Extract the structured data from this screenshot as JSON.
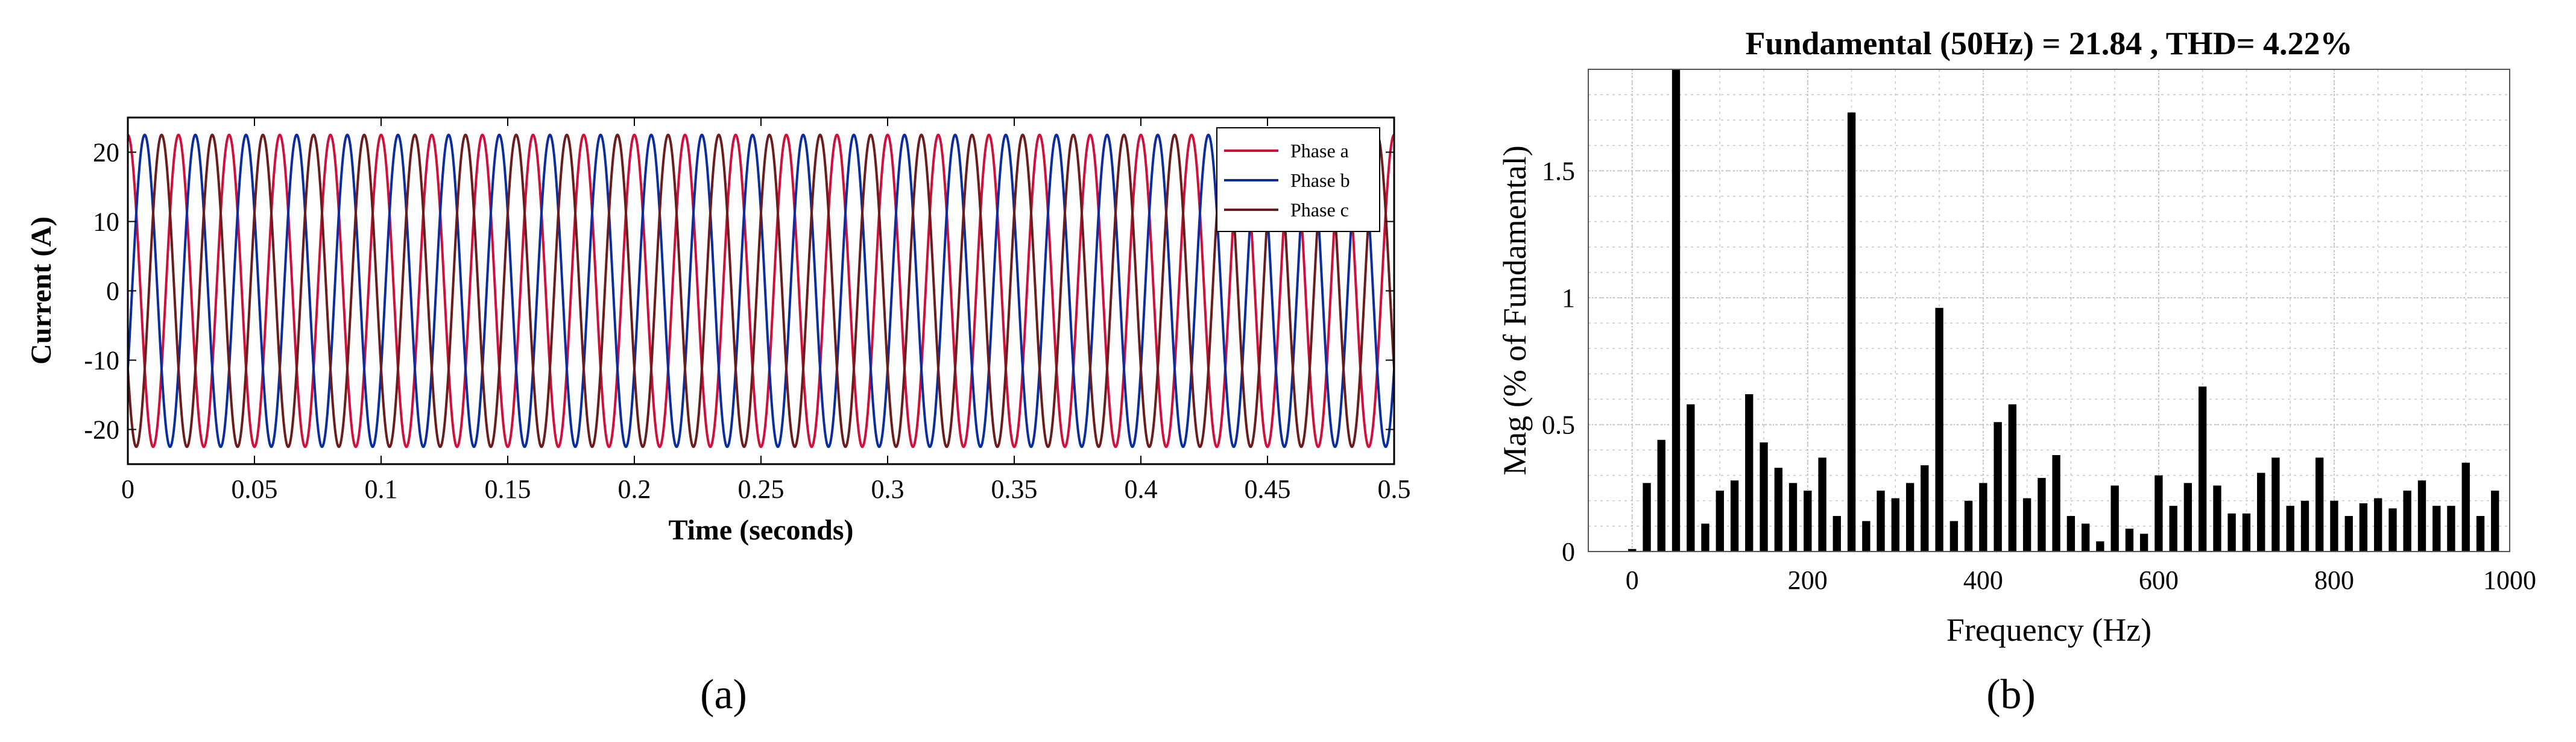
{
  "chart_data": [
    {
      "type": "line",
      "caption": "(a)",
      "xlabel": "Time (seconds)",
      "ylabel": "Current (A)",
      "xlim": [
        0,
        0.5
      ],
      "ylim": [
        -25,
        25
      ],
      "xticks": [
        0,
        0.05,
        0.1,
        0.15,
        0.2,
        0.25,
        0.3,
        0.35,
        0.4,
        0.45,
        0.5
      ],
      "xtick_labels": [
        "0",
        "0.05",
        "0.1",
        "0.15",
        "0.2",
        "0.25",
        "0.3",
        "0.35",
        "0.4",
        "0.45",
        "0.5"
      ],
      "yticks": [
        -20,
        -10,
        0,
        10,
        20
      ],
      "ytick_labels": [
        "-20",
        "-10",
        "0",
        "10",
        "20"
      ],
      "legend_position": "top-right",
      "series": [
        {
          "name": "Phase a",
          "color": "#d0103a",
          "amplitude": 22.5,
          "frequency_hz": 50,
          "phase_deg": 90
        },
        {
          "name": "Phase b",
          "color": "#0a2ea0",
          "amplitude": 22.5,
          "frequency_hz": 50,
          "phase_deg": -30
        },
        {
          "name": "Phase c",
          "color": "#6b1c1c",
          "amplitude": 22.5,
          "frequency_hz": 50,
          "phase_deg": 210
        }
      ]
    },
    {
      "type": "bar",
      "caption": "(b)",
      "title": "Fundamental (50Hz) = 21.84 , THD= 4.22%",
      "xlabel": "Frequency (Hz)",
      "ylabel": "Mag (% of Fundamental)",
      "xlim": [
        -50,
        1000
      ],
      "ylim": [
        0,
        1.9
      ],
      "xticks": [
        0,
        200,
        400,
        600,
        800,
        1000
      ],
      "xtick_labels": [
        "0",
        "200",
        "400",
        "600",
        "800",
        "1000"
      ],
      "yticks": [
        0,
        0.5,
        1,
        1.5
      ],
      "ytick_labels": [
        "0",
        "0.5",
        "1",
        "1.5"
      ],
      "grid": true,
      "frequencies": [
        0,
        16.7,
        33.3,
        50,
        66.7,
        83.3,
        100,
        116.7,
        133.3,
        150,
        166.7,
        183.3,
        200,
        216.7,
        233.3,
        250,
        266.7,
        283.3,
        300,
        316.7,
        333.3,
        350,
        366.7,
        383.3,
        400,
        416.7,
        433.3,
        450,
        466.7,
        483.3,
        500,
        516.7,
        533.3,
        550,
        566.7,
        583.3,
        600,
        616.7,
        633.3,
        650,
        666.7,
        683.3,
        700,
        716.7,
        733.3,
        750,
        766.7,
        783.3,
        800,
        816.7,
        833.3,
        850,
        866.7,
        883.3,
        900,
        916.7,
        933.3,
        950,
        966.7,
        983.3
      ],
      "values": [
        0.01,
        0.27,
        0.44,
        1.9,
        0.58,
        0.11,
        0.24,
        0.28,
        0.62,
        0.43,
        0.33,
        0.27,
        0.24,
        0.37,
        0.14,
        1.73,
        0.12,
        0.24,
        0.21,
        0.27,
        0.34,
        0.96,
        0.12,
        0.2,
        0.27,
        0.51,
        0.58,
        0.21,
        0.29,
        0.38,
        0.14,
        0.11,
        0.04,
        0.26,
        0.09,
        0.07,
        0.3,
        0.18,
        0.27,
        0.65,
        0.26,
        0.15,
        0.15,
        0.31,
        0.37,
        0.18,
        0.2,
        0.37,
        0.2,
        0.14,
        0.19,
        0.21,
        0.17,
        0.24,
        0.28,
        0.18,
        0.18,
        0.35,
        0.14,
        0.24
      ]
    }
  ]
}
